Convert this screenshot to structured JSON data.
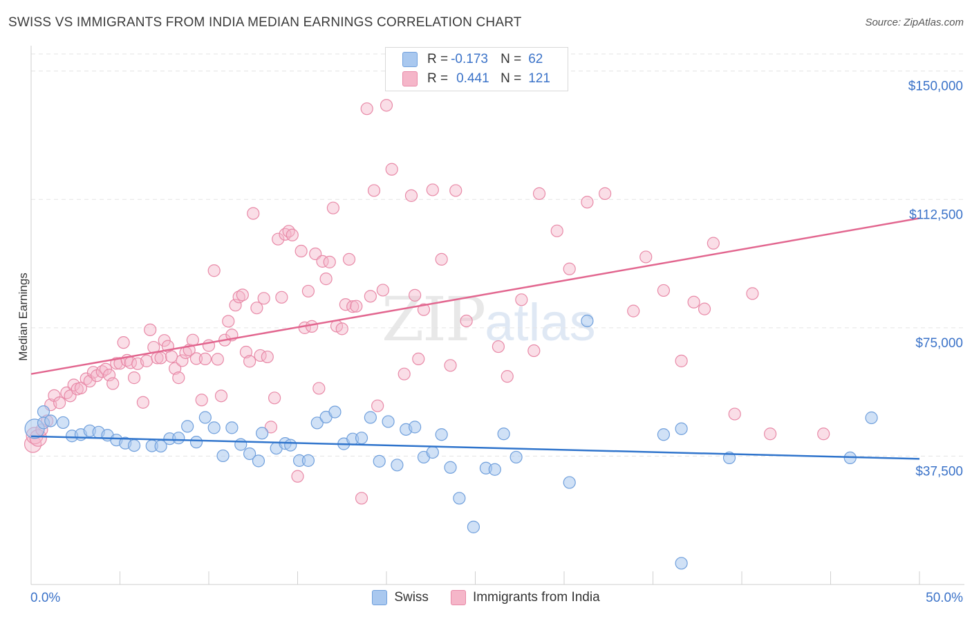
{
  "title": "SWISS VS IMMIGRANTS FROM INDIA MEDIAN EARNINGS CORRELATION CHART",
  "source": "Source: ZipAtlas.com",
  "watermark": {
    "zip": "ZIP",
    "atlas": "atlas"
  },
  "legend": {
    "swiss": {
      "r_label": "R =",
      "r_value": "-0.173",
      "n_label": "N =",
      "n_value": "62"
    },
    "india": {
      "r_label": "R =",
      "r_value": "0.441",
      "n_label": "N =",
      "n_value": "121"
    }
  },
  "bottom_legend": {
    "swiss": "Swiss",
    "india": "Immigrants from India"
  },
  "colors": {
    "swiss_fill": "#a9c8ef",
    "swiss_stroke": "#6f9fdc",
    "swiss_line": "#2f74cc",
    "india_fill": "#f5b6c9",
    "india_stroke": "#e889a7",
    "india_line": "#e2668f",
    "tick_text": "#3a72c8",
    "grid": "#e3e3e3"
  },
  "chart_data": {
    "type": "scatter",
    "title": "SWISS VS IMMIGRANTS FROM INDIA MEDIAN EARNINGS CORRELATION CHART",
    "xlabel": "",
    "ylabel": "Median Earnings",
    "xlim": [
      0,
      50
    ],
    "ylim": [
      0,
      155000
    ],
    "x_tick_labels": [
      "0.0%",
      "50.0%"
    ],
    "y_ticks": [
      37500,
      75000,
      112500,
      150000
    ],
    "y_tick_labels": [
      "$37,500",
      "$75,000",
      "$112,500",
      "$150,000"
    ],
    "series": [
      {
        "name": "Swiss",
        "r": -0.173,
        "n": 62,
        "trend": {
          "x": [
            0,
            50
          ],
          "y": [
            43300,
            36700
          ]
        },
        "points": [
          [
            0.2,
            45500
          ],
          [
            0.7,
            50500
          ],
          [
            0.7,
            47200
          ],
          [
            1.1,
            47800
          ],
          [
            1.8,
            47300
          ],
          [
            2.3,
            43400
          ],
          [
            2.8,
            43800
          ],
          [
            3.3,
            44900
          ],
          [
            3.8,
            44500
          ],
          [
            4.3,
            43600
          ],
          [
            4.8,
            42200
          ],
          [
            5.3,
            41300
          ],
          [
            5.8,
            40600
          ],
          [
            6.8,
            40500
          ],
          [
            7.3,
            40400
          ],
          [
            7.8,
            42600
          ],
          [
            8.3,
            42800
          ],
          [
            8.8,
            46200
          ],
          [
            9.3,
            41600
          ],
          [
            9.8,
            48800
          ],
          [
            10.3,
            45800
          ],
          [
            10.8,
            37600
          ],
          [
            11.3,
            45800
          ],
          [
            11.8,
            40900
          ],
          [
            12.3,
            38200
          ],
          [
            12.8,
            36100
          ],
          [
            13.0,
            44200
          ],
          [
            13.8,
            39800
          ],
          [
            14.3,
            41200
          ],
          [
            14.6,
            40700
          ],
          [
            15.1,
            36200
          ],
          [
            15.6,
            36200
          ],
          [
            16.1,
            47200
          ],
          [
            16.6,
            48900
          ],
          [
            17.1,
            50400
          ],
          [
            17.6,
            41100
          ],
          [
            18.1,
            42500
          ],
          [
            18.6,
            42800
          ],
          [
            19.1,
            48800
          ],
          [
            19.6,
            36000
          ],
          [
            20.1,
            47600
          ],
          [
            20.6,
            34900
          ],
          [
            21.1,
            45300
          ],
          [
            21.6,
            46000
          ],
          [
            22.1,
            37200
          ],
          [
            22.6,
            38600
          ],
          [
            23.1,
            43800
          ],
          [
            23.6,
            34200
          ],
          [
            24.1,
            25200
          ],
          [
            24.9,
            16800
          ],
          [
            25.6,
            34000
          ],
          [
            26.1,
            33600
          ],
          [
            26.6,
            44000
          ],
          [
            27.3,
            37200
          ],
          [
            30.3,
            29800
          ],
          [
            31.3,
            77000
          ],
          [
            35.6,
            43800
          ],
          [
            36.6,
            45500
          ],
          [
            36.6,
            6200
          ],
          [
            39.3,
            37000
          ],
          [
            46.1,
            37000
          ],
          [
            47.3,
            48700
          ]
        ]
      },
      {
        "name": "Immigrants from India",
        "r": 0.441,
        "n": 121,
        "trend": {
          "x": [
            0,
            50
          ],
          "y": [
            61500,
            107000
          ]
        },
        "points": [
          [
            0.1,
            41000
          ],
          [
            0.2,
            43500
          ],
          [
            0.4,
            42800
          ],
          [
            0.6,
            45200
          ],
          [
            0.9,
            47800
          ],
          [
            1.1,
            52500
          ],
          [
            1.3,
            55200
          ],
          [
            1.6,
            53100
          ],
          [
            2.0,
            56000
          ],
          [
            2.2,
            55100
          ],
          [
            2.4,
            58300
          ],
          [
            2.6,
            57100
          ],
          [
            2.8,
            57400
          ],
          [
            3.1,
            60100
          ],
          [
            3.3,
            59400
          ],
          [
            3.5,
            62000
          ],
          [
            3.7,
            61000
          ],
          [
            4.0,
            62200
          ],
          [
            4.2,
            62900
          ],
          [
            4.4,
            61200
          ],
          [
            4.6,
            58700
          ],
          [
            4.8,
            64600
          ],
          [
            5.0,
            64600
          ],
          [
            5.2,
            70700
          ],
          [
            5.4,
            65500
          ],
          [
            5.6,
            64800
          ],
          [
            5.8,
            60400
          ],
          [
            6.0,
            64500
          ],
          [
            6.3,
            53200
          ],
          [
            6.5,
            65300
          ],
          [
            6.7,
            74400
          ],
          [
            6.9,
            69300
          ],
          [
            7.1,
            66200
          ],
          [
            7.3,
            66200
          ],
          [
            7.5,
            71300
          ],
          [
            7.7,
            69600
          ],
          [
            7.9,
            66600
          ],
          [
            8.1,
            63100
          ],
          [
            8.3,
            60400
          ],
          [
            8.5,
            65400
          ],
          [
            8.7,
            67700
          ],
          [
            8.9,
            68500
          ],
          [
            9.1,
            71400
          ],
          [
            9.3,
            66000
          ],
          [
            9.6,
            53900
          ],
          [
            9.8,
            65900
          ],
          [
            10.0,
            69800
          ],
          [
            10.3,
            91700
          ],
          [
            10.5,
            65800
          ],
          [
            10.7,
            55100
          ],
          [
            10.9,
            71400
          ],
          [
            11.1,
            76900
          ],
          [
            11.3,
            72900
          ],
          [
            11.5,
            81600
          ],
          [
            11.7,
            84000
          ],
          [
            11.9,
            84600
          ],
          [
            12.1,
            67900
          ],
          [
            12.3,
            65200
          ],
          [
            12.5,
            108400
          ],
          [
            12.7,
            80800
          ],
          [
            12.9,
            66900
          ],
          [
            13.1,
            83600
          ],
          [
            13.3,
            66500
          ],
          [
            13.5,
            46000
          ],
          [
            13.7,
            54500
          ],
          [
            13.9,
            100900
          ],
          [
            14.1,
            83900
          ],
          [
            14.3,
            102300
          ],
          [
            14.5,
            103200
          ],
          [
            14.7,
            102100
          ],
          [
            15.0,
            31600
          ],
          [
            15.2,
            97400
          ],
          [
            15.4,
            75000
          ],
          [
            15.6,
            85700
          ],
          [
            15.8,
            75400
          ],
          [
            16.0,
            96600
          ],
          [
            16.2,
            57300
          ],
          [
            16.4,
            94400
          ],
          [
            16.6,
            89300
          ],
          [
            16.8,
            94200
          ],
          [
            17.0,
            110000
          ],
          [
            17.2,
            75500
          ],
          [
            17.5,
            74700
          ],
          [
            17.7,
            81800
          ],
          [
            17.9,
            95000
          ],
          [
            18.1,
            81200
          ],
          [
            18.3,
            81300
          ],
          [
            18.6,
            25200
          ],
          [
            18.9,
            139000
          ],
          [
            19.1,
            84200
          ],
          [
            19.3,
            115100
          ],
          [
            19.5,
            52200
          ],
          [
            19.8,
            86000
          ],
          [
            20.0,
            140000
          ],
          [
            20.3,
            121300
          ],
          [
            21.0,
            61500
          ],
          [
            21.4,
            113600
          ],
          [
            21.6,
            84500
          ],
          [
            21.8,
            65900
          ],
          [
            22.1,
            80300
          ],
          [
            22.6,
            115300
          ],
          [
            23.1,
            95000
          ],
          [
            23.6,
            64000
          ],
          [
            23.9,
            115100
          ],
          [
            24.5,
            77000
          ],
          [
            26.3,
            69500
          ],
          [
            26.8,
            60800
          ],
          [
            27.6,
            83200
          ],
          [
            28.3,
            68300
          ],
          [
            28.6,
            114200
          ],
          [
            29.6,
            103300
          ],
          [
            30.3,
            92200
          ],
          [
            31.3,
            111700
          ],
          [
            32.3,
            114200
          ],
          [
            33.9,
            79900
          ],
          [
            34.6,
            95700
          ],
          [
            35.6,
            85900
          ],
          [
            36.6,
            65300
          ],
          [
            37.3,
            82500
          ],
          [
            37.9,
            80500
          ],
          [
            38.4,
            99700
          ],
          [
            39.6,
            49800
          ],
          [
            40.6,
            85000
          ],
          [
            41.6,
            44000
          ],
          [
            44.6,
            44000
          ]
        ]
      }
    ]
  }
}
